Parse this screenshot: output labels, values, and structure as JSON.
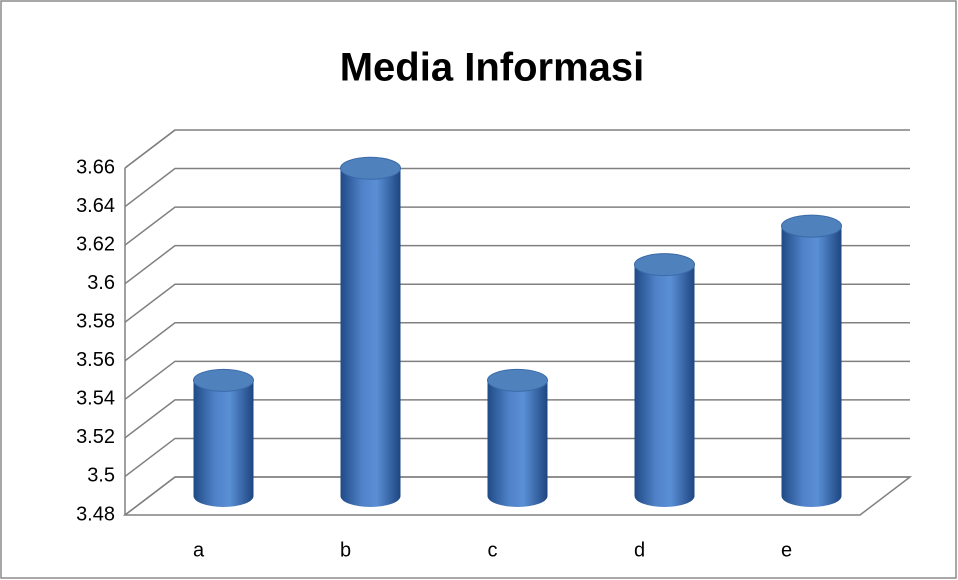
{
  "chart_data": {
    "type": "bar",
    "title": "Media Informasi",
    "categories": [
      "a",
      "b",
      "c",
      "d",
      "e"
    ],
    "values": [
      3.54,
      3.65,
      3.54,
      3.6,
      3.62
    ],
    "color": "#4f81bd",
    "ylim": [
      3.48,
      3.66
    ],
    "yticks": [
      3.48,
      3.5,
      3.52,
      3.54,
      3.56,
      3.58,
      3.6,
      3.62,
      3.64,
      3.66
    ],
    "grid": true
  }
}
